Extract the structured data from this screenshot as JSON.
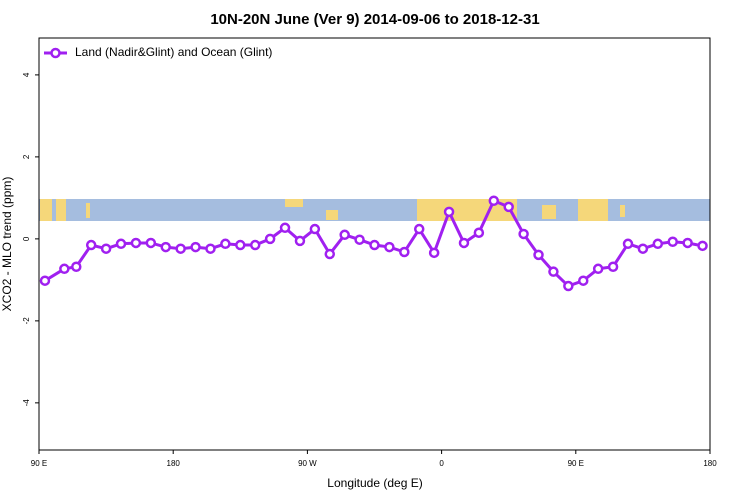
{
  "chart_data": {
    "type": "line",
    "title": "10N-20N June (Ver 9)   2014-09-06 to 2018-12-31",
    "x_label": "Longitude (deg E)",
    "y_label": "XCO2 - MLO trend (ppm)",
    "xlim": [
      90,
      540
    ],
    "ylim": [
      -5.15,
      4.9
    ],
    "xticks": [
      {
        "value": 90,
        "label": "90 E"
      },
      180,
      {
        "value": 270,
        "label": "90 W"
      },
      {
        "value": 360,
        "label": "0"
      },
      {
        "value": 450,
        "label": "90 E"
      },
      {
        "value": 540,
        "label": "180"
      }
    ],
    "yticks": [
      -4,
      -2,
      0,
      2,
      4
    ],
    "legend": "top-left",
    "series": [
      {
        "name": "Land (Nadir&Glint) and Ocean (Glint)",
        "color": "#a020f0",
        "x": [
          94,
          107,
          115,
          125,
          135,
          145,
          155,
          165,
          175,
          185,
          195,
          205,
          215,
          225,
          235,
          245,
          255,
          265,
          275,
          285,
          295,
          305,
          315,
          325,
          335,
          345,
          355,
          365,
          375,
          385,
          395,
          405,
          415,
          425,
          435,
          445,
          455,
          465,
          475,
          485,
          495,
          505,
          515,
          525,
          535
        ],
        "values": [
          -1.02,
          -0.73,
          -0.68,
          -0.15,
          -0.24,
          -0.12,
          -0.1,
          -0.1,
          -0.2,
          -0.24,
          -0.2,
          -0.24,
          -0.12,
          -0.15,
          -0.15,
          0.0,
          0.27,
          -0.05,
          0.24,
          -0.37,
          0.1,
          -0.02,
          -0.15,
          -0.2,
          -0.32,
          0.24,
          -0.34,
          0.66,
          -0.1,
          0.15,
          0.93,
          0.78,
          0.12,
          -0.39,
          -0.8,
          -1.15,
          -1.02,
          -0.73,
          -0.68,
          -0.12,
          -0.24,
          -0.12,
          -0.07,
          -0.1,
          -0.17
        ]
      }
    ]
  }
}
